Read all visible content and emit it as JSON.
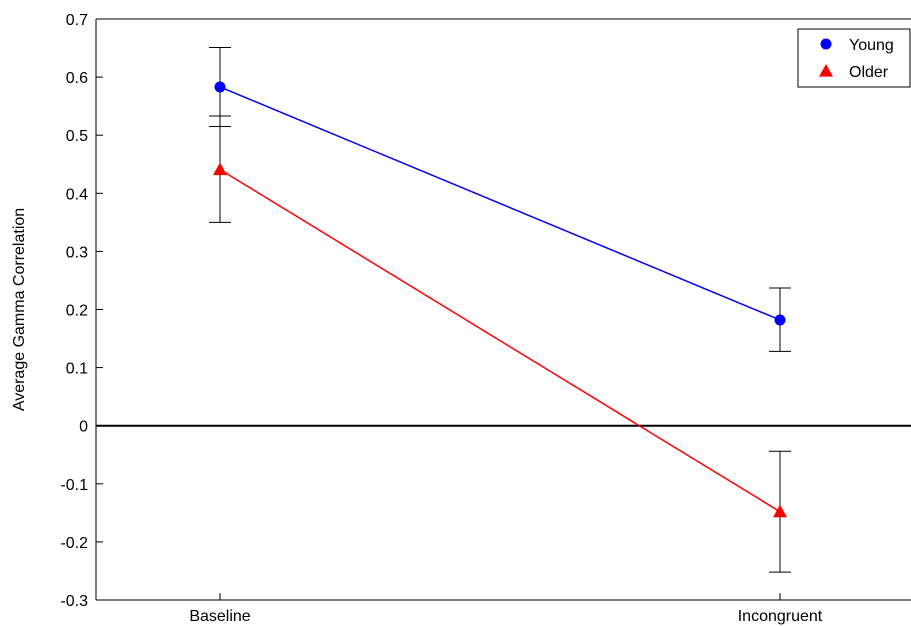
{
  "chart_data": {
    "type": "line",
    "title": "",
    "xlabel": "",
    "ylabel": "Average Gamma Correlation",
    "categories": [
      "Baseline",
      "Incongruent"
    ],
    "ylim": [
      -0.3,
      0.7
    ],
    "yticks": [
      "-0.3",
      "-0.2",
      "-0.1",
      "0",
      "0.1",
      "0.2",
      "0.3",
      "0.4",
      "0.5",
      "0.6",
      "0.7"
    ],
    "grid": false,
    "legend_position": "top-right",
    "reference_line": 0,
    "series": [
      {
        "name": "Young",
        "values": [
          0.583,
          0.182
        ],
        "error_low": [
          0.515,
          0.128
        ],
        "error_high": [
          0.651,
          0.237
        ],
        "marker": "circle",
        "color": "#0000ff"
      },
      {
        "name": "Older",
        "values": [
          0.441,
          -0.148
        ],
        "error_low": [
          0.35,
          -0.252
        ],
        "error_high": [
          0.533,
          -0.044
        ],
        "marker": "triangle",
        "color": "#ff0000"
      }
    ]
  }
}
